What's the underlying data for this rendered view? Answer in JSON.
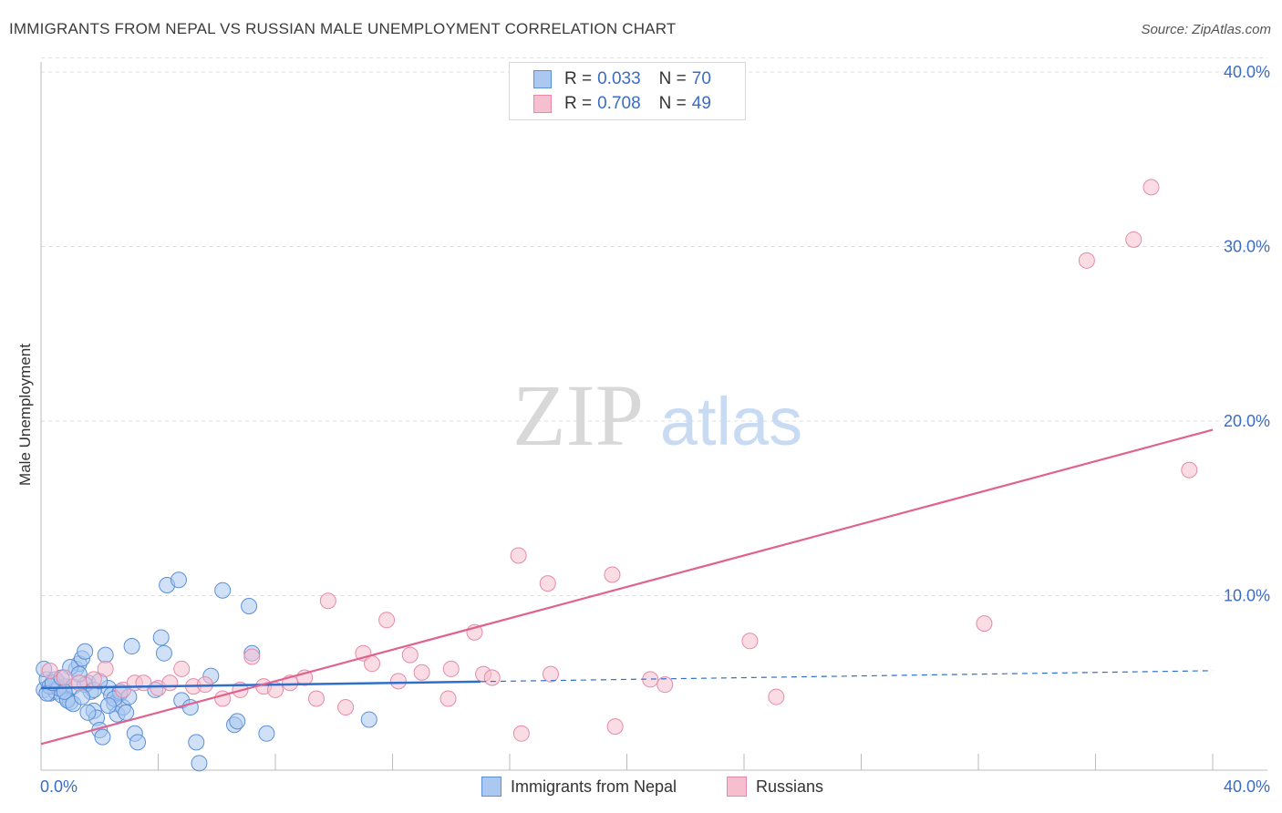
{
  "title": "IMMIGRANTS FROM NEPAL VS RUSSIAN MALE UNEMPLOYMENT CORRELATION CHART",
  "source": "Source: ZipAtlas.com",
  "watermark": {
    "zip": "ZIP",
    "atlas": "atlas"
  },
  "legend": {
    "nepal": {
      "r_label": "R =",
      "r_value": "0.033",
      "n_label": "N =",
      "n_value": "70"
    },
    "russians": {
      "r_label": "R =",
      "r_value": "0.708",
      "n_label": "N =",
      "n_value": "49"
    }
  },
  "colors": {
    "nepal_fill": "#aac8f0",
    "nepal_stroke": "#5b8fd6",
    "nepal_line": "#2f6fcc",
    "russians_fill": "#f6bfd0",
    "russians_stroke": "#e68aa8",
    "russians_line": "#e0628e",
    "tick_text": "#3a6cc6",
    "grid": "#dddddd"
  },
  "chart_data": {
    "type": "scatter",
    "title": "IMMIGRANTS FROM NEPAL VS RUSSIAN MALE UNEMPLOYMENT CORRELATION CHART",
    "xlabel": "",
    "ylabel": "Male Unemployment",
    "xlim": [
      0,
      40
    ],
    "ylim": [
      0,
      42
    ],
    "x_tick_labels": [
      "0.0%",
      "40.0%"
    ],
    "y_ticks": [
      10,
      20,
      30,
      40
    ],
    "y_tick_labels": [
      "10.0%",
      "20.0%",
      "30.0%",
      "40.0%"
    ],
    "grid": true,
    "series": [
      {
        "name": "Immigrants from Nepal",
        "r": 0.033,
        "n": 70,
        "trend": {
          "x0": 0,
          "y0": 4.7,
          "x1": 40,
          "y1": 5.7,
          "solid_until": 15
        },
        "points": [
          [
            0.1,
            4.6
          ],
          [
            0.2,
            5.2
          ],
          [
            0.3,
            4.4
          ],
          [
            0.4,
            4.9
          ],
          [
            0.5,
            4.5
          ],
          [
            0.6,
            5.0
          ],
          [
            0.7,
            4.3
          ],
          [
            0.8,
            4.8
          ],
          [
            0.9,
            4.1
          ],
          [
            1.0,
            3.9
          ],
          [
            1.1,
            4.8
          ],
          [
            1.2,
            5.8
          ],
          [
            1.3,
            6.1
          ],
          [
            1.4,
            6.4
          ],
          [
            1.5,
            6.8
          ],
          [
            1.6,
            5.0
          ],
          [
            1.7,
            4.5
          ],
          [
            1.8,
            3.4
          ],
          [
            1.9,
            3.0
          ],
          [
            2.0,
            2.3
          ],
          [
            2.1,
            1.9
          ],
          [
            2.2,
            6.6
          ],
          [
            2.3,
            4.7
          ],
          [
            2.4,
            4.3
          ],
          [
            2.5,
            3.8
          ],
          [
            2.6,
            3.2
          ],
          [
            2.7,
            4.4
          ],
          [
            2.8,
            3.6
          ],
          [
            3.1,
            7.1
          ],
          [
            3.2,
            2.1
          ],
          [
            3.3,
            1.6
          ],
          [
            3.9,
            4.6
          ],
          [
            4.1,
            7.6
          ],
          [
            4.2,
            6.7
          ],
          [
            4.3,
            10.6
          ],
          [
            4.7,
            10.9
          ],
          [
            4.8,
            4.0
          ],
          [
            5.1,
            3.6
          ],
          [
            5.3,
            1.6
          ],
          [
            5.4,
            0.4
          ],
          [
            5.8,
            5.4
          ],
          [
            6.2,
            10.3
          ],
          [
            6.6,
            2.6
          ],
          [
            6.7,
            2.8
          ],
          [
            7.1,
            9.4
          ],
          [
            7.2,
            6.7
          ],
          [
            7.7,
            2.1
          ],
          [
            11.2,
            2.9
          ],
          [
            0.1,
            5.8
          ],
          [
            0.5,
            5.2
          ],
          [
            0.9,
            4.0
          ],
          [
            1.0,
            5.9
          ],
          [
            1.5,
            4.9
          ],
          [
            1.8,
            4.6
          ],
          [
            2.0,
            5.1
          ],
          [
            2.7,
            4.5
          ],
          [
            0.3,
            4.8
          ],
          [
            0.6,
            4.7
          ],
          [
            1.1,
            3.8
          ],
          [
            1.6,
            3.3
          ],
          [
            2.5,
            4.1
          ],
          [
            0.2,
            4.4
          ],
          [
            0.4,
            5.0
          ],
          [
            0.8,
            4.5
          ],
          [
            1.3,
            5.5
          ],
          [
            2.3,
            3.7
          ],
          [
            3.0,
            4.2
          ],
          [
            1.4,
            4.2
          ],
          [
            0.7,
            5.3
          ],
          [
            2.9,
            3.3
          ]
        ]
      },
      {
        "name": "Russians",
        "r": 0.708,
        "n": 49,
        "trend": {
          "x0": 0,
          "y0": 1.5,
          "x1": 40,
          "y1": 19.5
        },
        "points": [
          [
            0.3,
            5.7
          ],
          [
            0.8,
            5.3
          ],
          [
            1.3,
            5.0
          ],
          [
            1.8,
            5.2
          ],
          [
            2.2,
            5.8
          ],
          [
            2.8,
            4.6
          ],
          [
            3.2,
            5.0
          ],
          [
            3.5,
            5.0
          ],
          [
            4.0,
            4.7
          ],
          [
            4.4,
            5.0
          ],
          [
            4.8,
            5.8
          ],
          [
            5.2,
            4.8
          ],
          [
            5.6,
            4.9
          ],
          [
            6.2,
            4.1
          ],
          [
            6.8,
            4.6
          ],
          [
            7.2,
            6.5
          ],
          [
            7.6,
            4.8
          ],
          [
            8.0,
            4.6
          ],
          [
            8.5,
            5.0
          ],
          [
            9.0,
            5.3
          ],
          [
            9.4,
            4.1
          ],
          [
            9.8,
            9.7
          ],
          [
            10.4,
            3.6
          ],
          [
            11.0,
            6.7
          ],
          [
            11.3,
            6.1
          ],
          [
            11.8,
            8.6
          ],
          [
            12.2,
            5.1
          ],
          [
            12.6,
            6.6
          ],
          [
            13.0,
            5.6
          ],
          [
            13.9,
            4.1
          ],
          [
            14.0,
            5.8
          ],
          [
            14.8,
            7.9
          ],
          [
            15.1,
            5.5
          ],
          [
            15.4,
            5.3
          ],
          [
            16.3,
            12.3
          ],
          [
            16.4,
            2.1
          ],
          [
            17.3,
            10.7
          ],
          [
            17.4,
            5.5
          ],
          [
            19.5,
            11.2
          ],
          [
            19.6,
            2.5
          ],
          [
            20.8,
            5.2
          ],
          [
            21.3,
            4.9
          ],
          [
            24.2,
            7.4
          ],
          [
            25.1,
            4.2
          ],
          [
            32.2,
            8.4
          ],
          [
            35.7,
            29.2
          ],
          [
            37.3,
            30.4
          ],
          [
            37.9,
            33.4
          ],
          [
            39.2,
            17.2
          ]
        ]
      }
    ]
  }
}
